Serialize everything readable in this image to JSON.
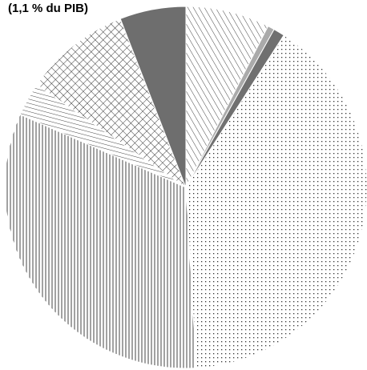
{
  "chart_data": {
    "type": "pie",
    "title": "(1,1 % du PIB)",
    "start_angle_deg": 0,
    "direction": "clockwise",
    "slices": [
      {
        "value": 7.5,
        "pattern": "diag-fwd",
        "color": "#555555"
      },
      {
        "value": 0.6,
        "pattern": "solid",
        "color": "#aaaaaa"
      },
      {
        "value": 1.0,
        "pattern": "solid",
        "color": "#707070"
      },
      {
        "value": 40.0,
        "pattern": "dots",
        "color": "#444444"
      },
      {
        "value": 32.5,
        "pattern": "vertical-lines",
        "color": "#444444"
      },
      {
        "value": 3.0,
        "pattern": "diag-back",
        "color": "#444444"
      },
      {
        "value": 9.5,
        "pattern": "crosshatch",
        "color": "#333333"
      },
      {
        "value": 5.9,
        "pattern": "solid",
        "color": "#6e6e6e"
      }
    ]
  }
}
